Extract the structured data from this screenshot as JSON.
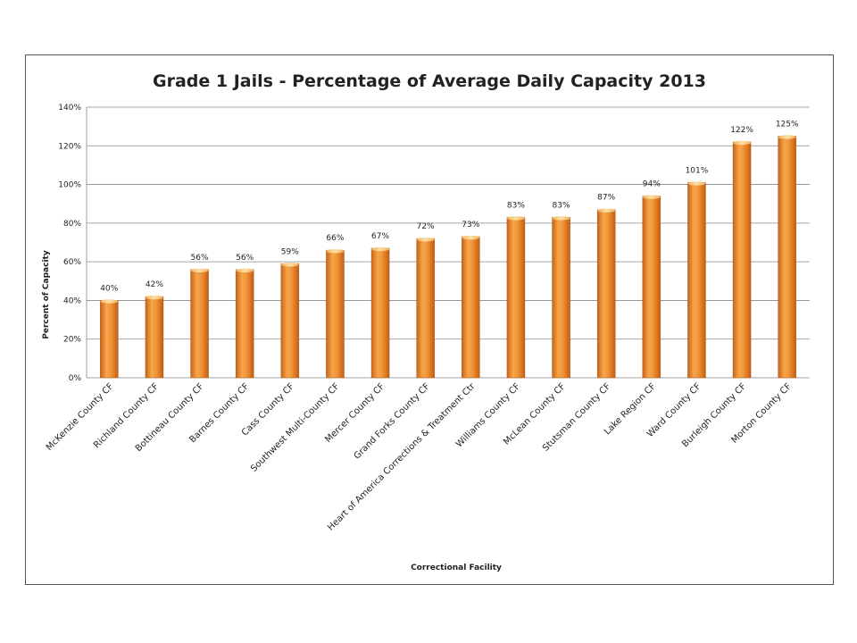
{
  "chart_data": {
    "type": "bar",
    "title": "Grade 1 Jails - Percentage of Average Daily Capacity 2013",
    "xlabel": "Correctional Facility",
    "ylabel": "Percent of Capacity",
    "ylim": [
      0,
      140
    ],
    "yticks": [
      0,
      20,
      40,
      60,
      80,
      100,
      120,
      140
    ],
    "ytick_labels": [
      "0%",
      "20%",
      "40%",
      "60%",
      "80%",
      "100%",
      "120%",
      "140%"
    ],
    "grid": true,
    "legend": "none",
    "bar_color": "#f0902c",
    "categories": [
      "McKenzie County CF",
      "Richland County CF",
      "Bottineau County CF",
      "Barnes County CF",
      "Cass County CF",
      "Southwest Multi-County CF",
      "Mercer County CF",
      "Grand Forks County CF",
      "Heart of America Corrections & Treatment Ctr",
      "Williams County CF",
      "McLean County CF",
      "Stutsman County CF",
      "Lake Region CF",
      "Ward County CF",
      "Burleigh County CF",
      "Morton County CF"
    ],
    "values": [
      40,
      42,
      56,
      56,
      59,
      66,
      67,
      72,
      73,
      83,
      83,
      87,
      94,
      101,
      122,
      125
    ],
    "data_labels": [
      "40%",
      "42%",
      "56%",
      "56%",
      "59%",
      "66%",
      "67%",
      "72%",
      "73%",
      "83%",
      "83%",
      "87%",
      "94%",
      "101%",
      "122%",
      "125%"
    ]
  }
}
